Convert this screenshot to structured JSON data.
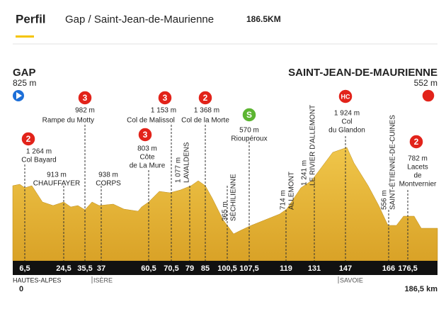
{
  "header": {
    "title": "Perfil",
    "route": "Gap / Saint-Jean-de-Maurienne",
    "distance": "186.5KM"
  },
  "start": {
    "name": "GAP",
    "altitude": "825 m",
    "region": "HAUTES-ALPES",
    "km": "0"
  },
  "finish": {
    "name": "SAINT-JEAN-DE-MAURIENNE",
    "altitude": "552 m",
    "km": "186,5 km"
  },
  "regions": [
    "ISÈRE",
    "SAVOIE"
  ],
  "km_markers": [
    "6,5",
    "24,5",
    "35,5",
    "37",
    "60,5",
    "70,5",
    "79",
    "85",
    "100,5",
    "107,5",
    "119",
    "131",
    "147",
    "166",
    "176,5"
  ],
  "places": [
    {
      "badge": "2",
      "altitude": "1 264 m",
      "name": [
        "Col Bayard"
      ]
    },
    {
      "altitude": "913 m",
      "name": [
        "CHAUFFAYER"
      ]
    },
    {
      "badge": "3",
      "altitude": "982 m",
      "name": [
        "Rampe du Motty"
      ]
    },
    {
      "altitude": "938 m",
      "name": [
        "CORPS"
      ]
    },
    {
      "badge": "3",
      "altitude": "803 m",
      "name": [
        "Côte",
        "de La Mure"
      ]
    },
    {
      "badge": "3",
      "altitude": "1 153 m",
      "name": [
        "Col de Malissol"
      ]
    },
    {
      "altitude": "1 077 m",
      "name": [
        "LAVALDENS"
      ]
    },
    {
      "badge": "2",
      "altitude": "1 368 m",
      "name": [
        "Col de la Morte"
      ]
    },
    {
      "badge": "S",
      "altitude": "570 m",
      "name": [
        "Rioupéroux"
      ]
    },
    {
      "altitude": "365 m",
      "name": [
        "SÉCHILIENNE"
      ]
    },
    {
      "altitude": "714 m",
      "name": [
        "ALLEMONT"
      ]
    },
    {
      "altitude": "1 241 m",
      "name": [
        "LE RIVIER D'ALLEMONT"
      ]
    },
    {
      "badge": "HC",
      "altitude": "1 924 m",
      "name": [
        "Col",
        "du Glandon"
      ]
    },
    {
      "altitude": "556 m",
      "name": [
        "SAINT-ÉTIENNE-DE-CUINES"
      ]
    },
    {
      "badge": "2",
      "altitude": "782 m",
      "name": [
        "Lacets",
        "de",
        "Montvernier"
      ]
    }
  ]
}
